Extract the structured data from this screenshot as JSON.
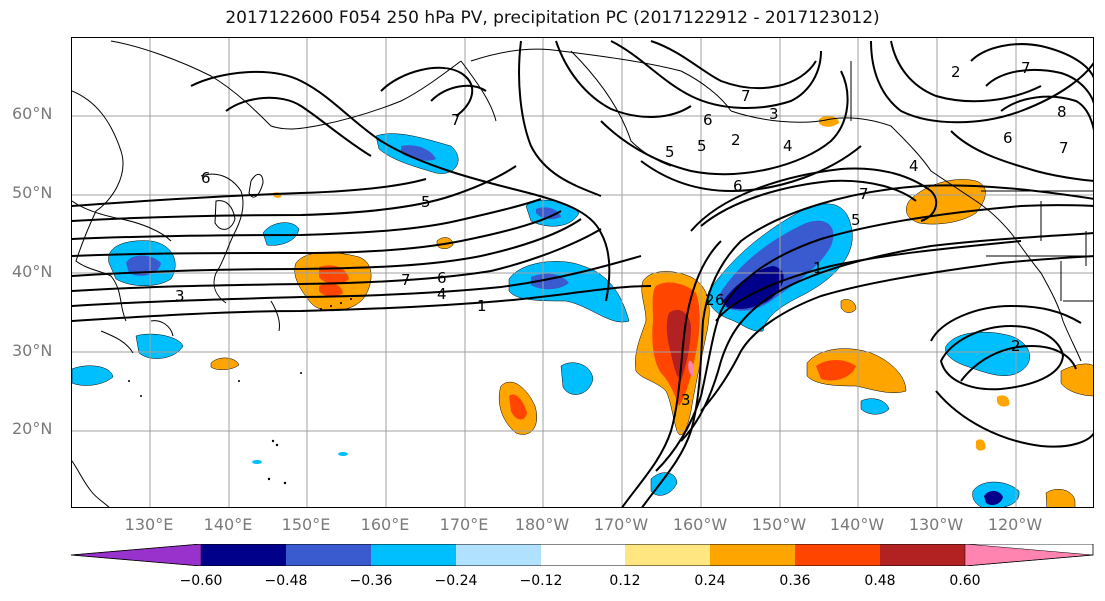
{
  "title": "2017122600 F054 250 hPa PV, precipitation PC (2017122912 - 2017123012)",
  "lat_labels": [
    "60°N",
    "50°N",
    "40°N",
    "30°N",
    "20°N"
  ],
  "lon_labels": [
    "130°E",
    "140°E",
    "150°E",
    "160°E",
    "170°E",
    "180°W",
    "170°W",
    "160°W",
    "150°W",
    "140°W",
    "130°W",
    "120°W"
  ],
  "contour_labels": [
    "7",
    "6",
    "7",
    "4",
    "5",
    "1",
    "6",
    "7",
    "6",
    "5",
    "2",
    "3",
    "2",
    "6",
    "5",
    "7",
    "1",
    "6",
    "4",
    "3",
    "5",
    "7",
    "4",
    "2",
    "8",
    "6",
    "7",
    "2",
    "3"
  ],
  "colorbar": {
    "tick_labels": [
      "−0.60",
      "−0.48",
      "−0.36",
      "−0.24",
      "−0.12",
      "0.12",
      "0.24",
      "0.36",
      "0.48",
      "0.60"
    ],
    "colors": [
      "#9932cc",
      "#00008b",
      "#3a5bd0",
      "#00bfff",
      "#b0e2ff",
      "#ffffff",
      "#ffe680",
      "#ffa500",
      "#ff4500",
      "#b22222",
      "#ff85b0"
    ]
  }
}
